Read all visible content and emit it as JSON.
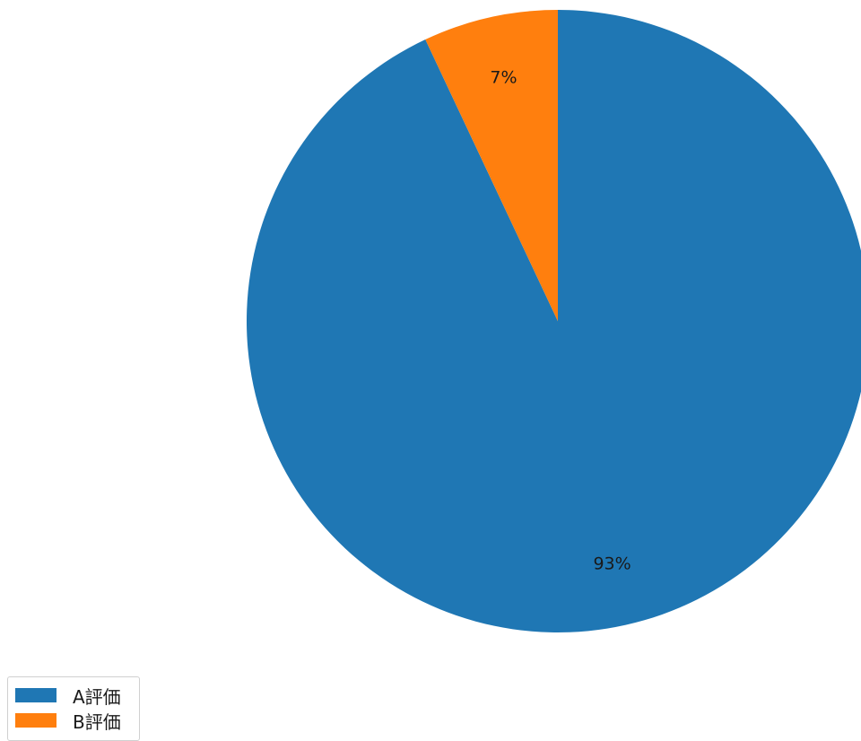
{
  "chart_data": {
    "type": "pie",
    "slices": [
      {
        "label": "A評価",
        "value": 93,
        "value_label": "93%",
        "color": "#1f77b4"
      },
      {
        "label": "B評価",
        "value": 7,
        "value_label": "7%",
        "color": "#ff7f0e"
      }
    ],
    "legend_placement": "bottom-left"
  }
}
